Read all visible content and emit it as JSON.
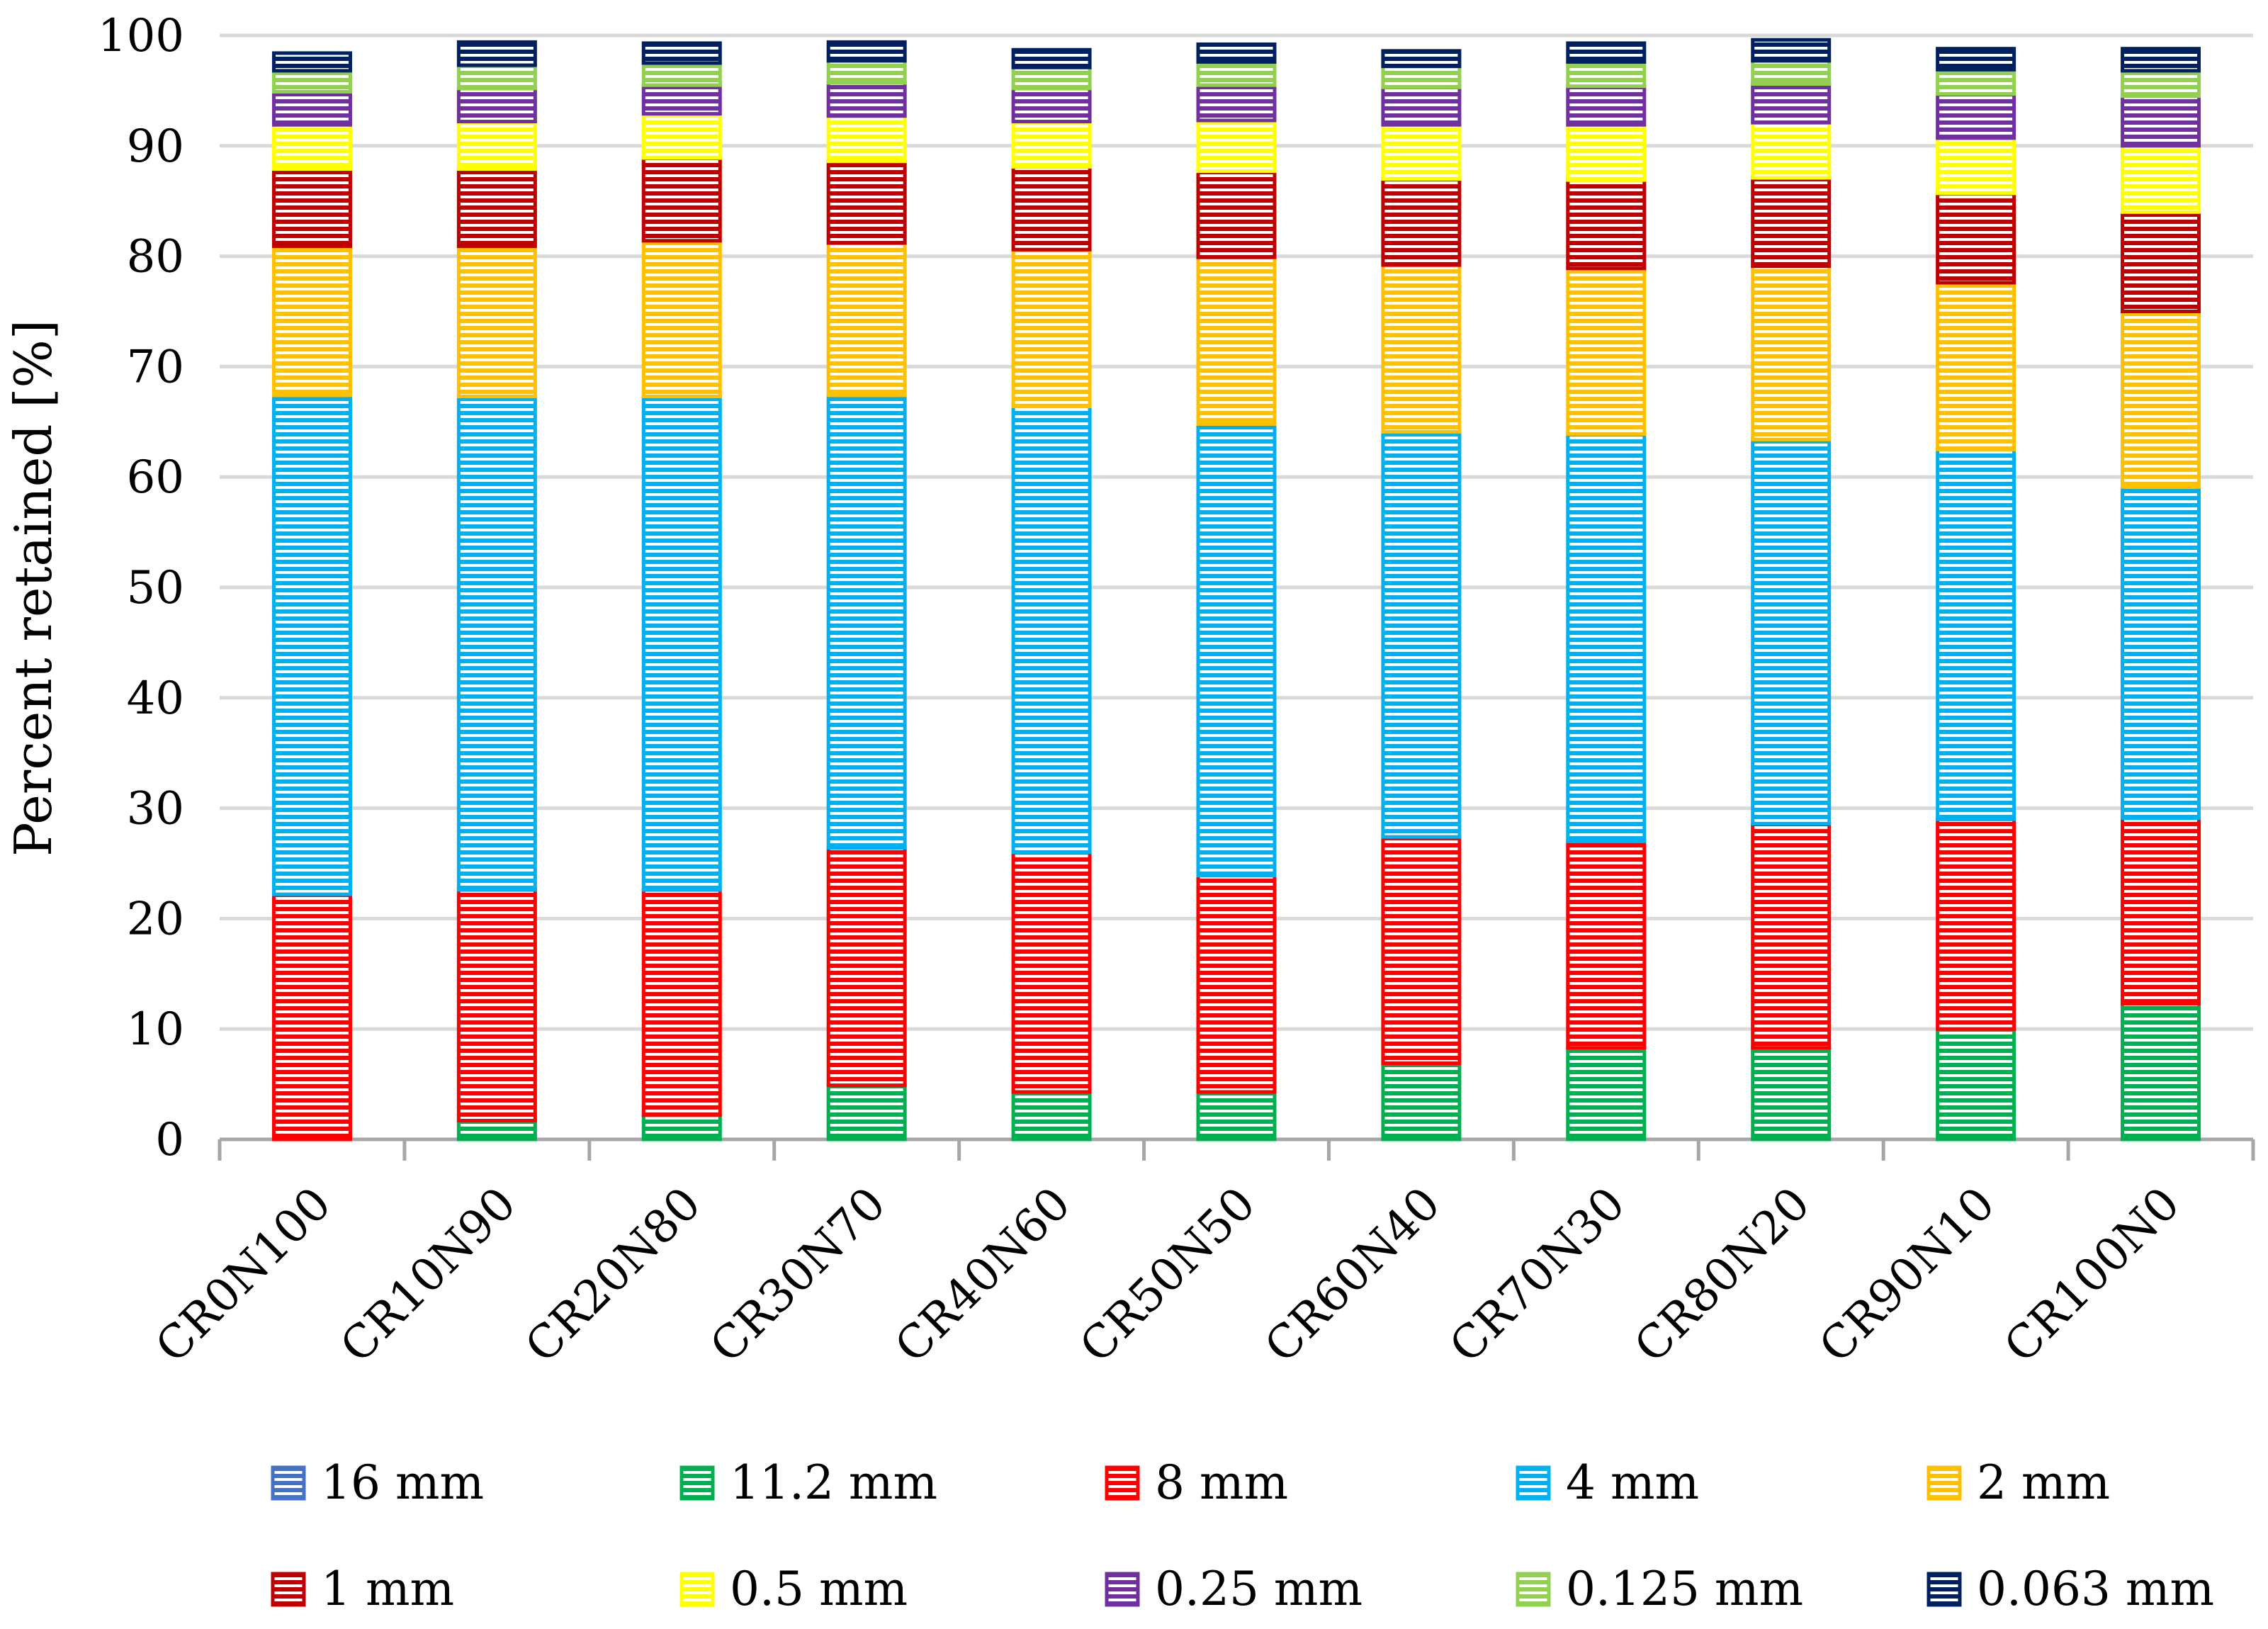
{
  "chart_data": {
    "type": "stacked-bar",
    "title": "",
    "xlabel": "",
    "ylabel": "Percent retained [%]",
    "ylim": [
      0,
      100
    ],
    "yticks": [
      0,
      10,
      20,
      30,
      40,
      50,
      60,
      70,
      80,
      90,
      100
    ],
    "grid": "horizontal",
    "legend_position": "bottom",
    "categories": [
      "CR0N100",
      "CR10N90",
      "CR20N80",
      "CR30N70",
      "CR40N60",
      "CR50N50",
      "CR60N40",
      "CR70N30",
      "CR80N20",
      "CR90N10",
      "CR100N0"
    ],
    "series": [
      {
        "name": "16 mm",
        "color": "#4472C4",
        "values": [
          0,
          0,
          0,
          0,
          0,
          0,
          0,
          0,
          0,
          0,
          0
        ]
      },
      {
        "name": "11.2 mm",
        "color": "#00B050",
        "values": [
          0,
          1.7,
          2.2,
          4.9,
          4.3,
          4.3,
          6.9,
          8.3,
          8.3,
          10.0,
          12.3
        ]
      },
      {
        "name": "8 mm",
        "color": "#FF0000",
        "values": [
          22.2,
          20.9,
          20.4,
          21.5,
          21.7,
          19.6,
          20.5,
          18.7,
          20.3,
          19.0,
          16.8
        ]
      },
      {
        "name": "4 mm",
        "color": "#00B0F0",
        "values": [
          45.2,
          44.7,
          44.7,
          41.0,
          40.4,
          40.9,
          36.7,
          36.9,
          34.8,
          33.5,
          30.0
        ]
      },
      {
        "name": "2 mm",
        "color": "#FFC000",
        "values": [
          13.5,
          13.6,
          14.1,
          13.8,
          14.2,
          15.1,
          15.1,
          15.0,
          15.7,
          15.1,
          15.9
        ]
      },
      {
        "name": "1 mm",
        "color": "#C00000",
        "values": [
          7.0,
          7.0,
          7.5,
          7.4,
          7.5,
          7.8,
          7.8,
          8.0,
          8.0,
          8.1,
          9.0
        ]
      },
      {
        "name": "0.5 mm",
        "color": "#FFFF00",
        "values": [
          4.0,
          4.3,
          4.0,
          4.1,
          4.1,
          4.6,
          4.9,
          5.0,
          5.0,
          5.0,
          6.0
        ]
      },
      {
        "name": "0.25 mm",
        "color": "#7030A0",
        "values": [
          3.0,
          3.0,
          2.6,
          3.0,
          3.0,
          3.2,
          3.4,
          3.5,
          3.5,
          4.0,
          4.5
        ]
      },
      {
        "name": "0.125 mm",
        "color": "#92D050",
        "values": [
          1.9,
          2.1,
          2.0,
          2.0,
          1.9,
          2.1,
          1.9,
          2.2,
          2.1,
          2.2,
          2.3
        ]
      },
      {
        "name": "0.063 mm",
        "color": "#002060",
        "values": [
          1.6,
          2.1,
          1.8,
          1.7,
          1.6,
          1.6,
          1.4,
          1.7,
          1.9,
          1.9,
          2.0
        ]
      }
    ]
  }
}
